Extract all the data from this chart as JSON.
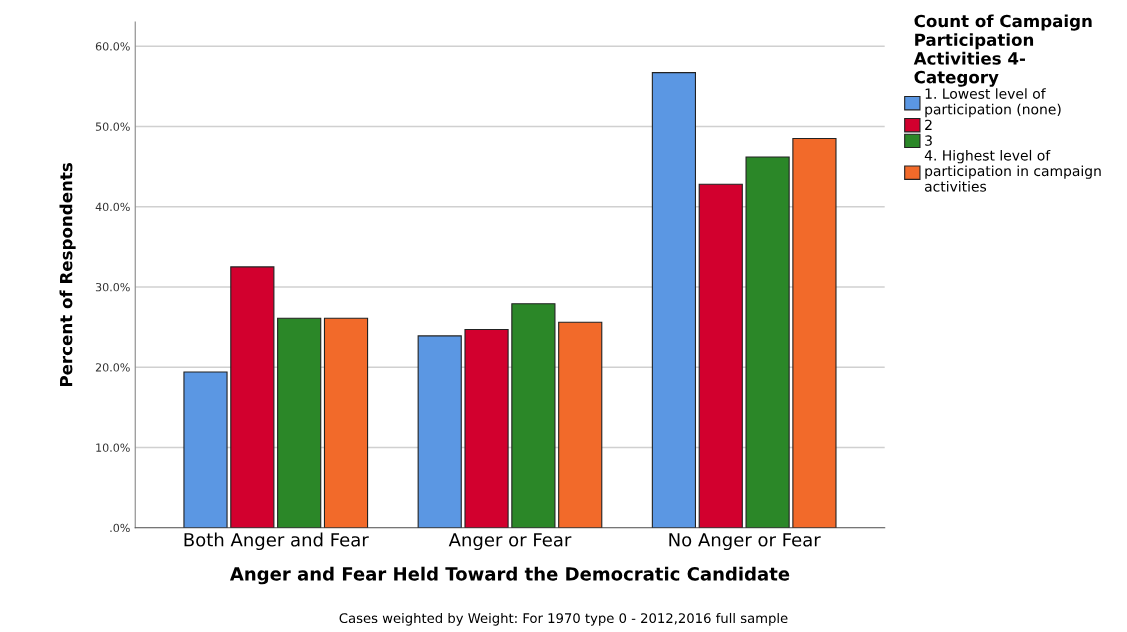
{
  "chart_data": {
    "type": "bar",
    "categories": [
      "Both Anger and Fear",
      "Anger or Fear",
      "No Anger or Fear"
    ],
    "series": [
      {
        "name": "1. Lowest level of\nparticipation (none)",
        "color": "#5b97e3",
        "values": [
          19.4,
          23.9,
          56.7
        ]
      },
      {
        "name": "2",
        "color": "#d2002e",
        "values": [
          32.5,
          24.7,
          42.8
        ]
      },
      {
        "name": "3",
        "color": "#2b8728",
        "values": [
          26.1,
          27.9,
          46.2
        ]
      },
      {
        "name": "4. Highest level of\nparticipation in campaign\nactivities",
        "color": "#f26a2a",
        "values": [
          26.1,
          25.6,
          48.5
        ]
      }
    ],
    "xlabel": "Anger and Fear Held Toward the Democratic Candidate",
    "ylabel": "Percent of Respondents",
    "legend_title": "Count of Campaign\nParticipation\nActivities 4-\nCategory",
    "legend": "top right",
    "ylim": [
      0,
      63
    ],
    "yticks": [
      {
        "value": 0,
        "label": ".0%"
      },
      {
        "value": 10,
        "label": "10.0%"
      },
      {
        "value": 20,
        "label": "20.0%"
      },
      {
        "value": 30,
        "label": "30.0%"
      },
      {
        "value": 40,
        "label": "40.0%"
      },
      {
        "value": 50,
        "label": "50.0%"
      },
      {
        "value": 60,
        "label": "60.0%"
      }
    ],
    "grid": "y",
    "annotations": [
      "Cases weighted by Weight: For 1970 type 0 - 2012,2016 full sample"
    ]
  }
}
